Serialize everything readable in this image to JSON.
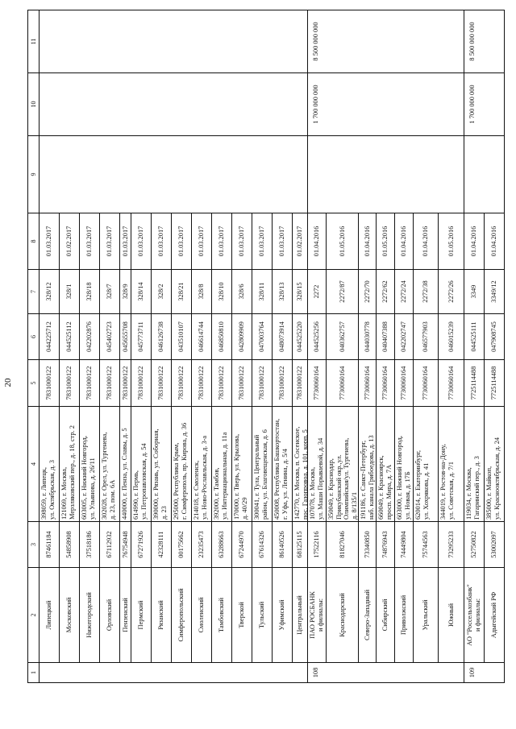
{
  "page_number": "20",
  "table": {
    "headers": [
      "1",
      "2",
      "3",
      "4",
      "5",
      "6",
      "7",
      "8",
      "9",
      "10",
      "11"
    ],
    "groups": [
      {
        "number": "",
        "col9": "",
        "col10": "",
        "col11": "",
        "rows": [
          {
            "name": "Липецкий",
            "okpo": "87461184",
            "address": "398059, г. Липецк,\nул. Октябрьская, д. 3",
            "inn": "7831000122",
            "bik": "044225712",
            "license": "328/12",
            "date": "01.03.2017"
          },
          {
            "name": "Московский",
            "okpo": "54858908",
            "address": "121069, г. Москва,\nМерзляковский пер., д. 18, стр. 2",
            "inn": "7831000122",
            "bik": "044525112",
            "license": "328/1",
            "date": "01.02.2017"
          },
          {
            "name": "Нижегородский",
            "okpo": "37518186",
            "address": "603005, г. Нижний Новгород,\nул. Ульянова, д. 26/11",
            "inn": "7831000122",
            "bik": "042202876",
            "license": "328/18",
            "date": "01.03.2017"
          },
          {
            "name": "Орловский",
            "okpo": "67112932",
            "address": "302028, г. Орел, ул. Тургенева,\nд. 23, пом. 6А",
            "inn": "7831000122",
            "bik": "045402723",
            "license": "328/7",
            "date": "01.03.2017"
          },
          {
            "name": "Пензенский",
            "okpo": "76754948",
            "address": "440000, г. Пенза, ул. Славы, д. 5",
            "inn": "7831000122",
            "bik": "045655708",
            "license": "328/9",
            "date": "01.03.2017"
          },
          {
            "name": "Пермский",
            "okpo": "67271926",
            "address": "614990, г. Пермь,\nул. Петропавловская, д. 54",
            "inn": "7831000122",
            "bik": "045773711",
            "license": "328/14",
            "date": "01.03.2017"
          },
          {
            "name": "Рязанский",
            "okpo": "42328111",
            "address": "390000, г. Рязань, ул. Соборная,\nд. 23",
            "inn": "7831000122",
            "bik": "046126738",
            "license": "328/2",
            "date": "01.03.2017"
          },
          {
            "name": "Симферопольский",
            "okpo": "00175662",
            "address": "295000, Республика Крым,\nг. Симферополь, пр. Кирова, д. 36",
            "inn": "7831000122",
            "bik": "043510107",
            "license": "328/21",
            "date": "01.03.2017"
          },
          {
            "name": "Смоленский",
            "okpo": "23235473",
            "address": "214018, г. Смоленск,\nул. Ново-Рославльская, д. 3-а",
            "inn": "7831000122",
            "bik": "046614744",
            "license": "328/8",
            "date": "01.03.2017"
          },
          {
            "name": "Тамбовский",
            "okpo": "63288663",
            "address": "392000, г. Тамбов,\nул. Интернациональная, д. 11а",
            "inn": "7831000122",
            "bik": "046850810",
            "license": "328/10",
            "date": "01.03.2017"
          },
          {
            "name": "Тверской",
            "okpo": "67244970",
            "address": "170000, г. Тверь, ул. Крылова,\nд. 40/29",
            "inn": "7831000122",
            "bik": "042809909",
            "license": "328/6",
            "date": "01.03.2017"
          },
          {
            "name": "Тульский",
            "okpo": "67614326",
            "address": "300041, г. Тула, Центральный\nрайон, ул. Благовещенская, д. 6",
            "inn": "7831000122",
            "bik": "047003764",
            "license": "328/11",
            "date": "01.03.2017"
          },
          {
            "name": "Уфимский",
            "okpo": "86140526",
            "address": "450008, Республика Башкортостан,\nг. Уфа, ул. Ленина, д. 5/4",
            "inn": "7831000122",
            "bik": "048073914",
            "license": "328/13",
            "date": "01.03.2017"
          },
          {
            "name": "Центральный",
            "okpo": "68125115",
            "address": "142770, г. Москва, п. Сосенское,\nпос. Газопровод, д. 101, корп. 5",
            "inn": "7831000122",
            "bik": "044525220",
            "license": "328/15",
            "date": "01.02.2017"
          }
        ]
      },
      {
        "number": "108",
        "col9": "",
        "col10": "1 700 000 000",
        "col11": "8 500 000 000",
        "rows": [
          {
            "name": "ПАО РОСБАНК\nи филиалы:",
            "okpo": "17522116",
            "address": "107078, г. Москва,\nул. Маши Порываевой, д. 34",
            "inn": "7730060164",
            "bik": "044525256",
            "license": "2272",
            "date": "01.04.2016"
          },
          {
            "name": "Краснодарский",
            "okpo": "81827046",
            "address": "350049, г. Краснодар,\nПрикубанский окр.,ул.\nОлимпийская/ул. Тургенева,\nд. 8/135/1",
            "inn": "7730060164",
            "bik": "040362757",
            "license": "2272/87",
            "date": "01.05.2016"
          },
          {
            "name": "Северо-Западный",
            "okpo": "73340850",
            "address": "191186, г. Санкт-Петербург,\nнаб. канала Грибоедова, д. 13",
            "inn": "7730060164",
            "bik": "044030778",
            "license": "2272/70",
            "date": "01.04.2016"
          },
          {
            "name": "Сибирский",
            "okpo": "74876943",
            "address": "660049, г. Красноярск,\nпросп. Мира, д. 7А",
            "inn": "7730060164",
            "bik": "040407388",
            "license": "2272/62",
            "date": "01.05.2016"
          },
          {
            "name": "Приволжский",
            "okpo": "74449804",
            "address": "603000, г. Нижний Новгород,\nул. Новая, д. 17Б",
            "inn": "7730060164",
            "bik": "042202747",
            "license": "2272/24",
            "date": "01.04.2016"
          },
          {
            "name": "Уральский",
            "okpo": "75744563",
            "address": "620014, г. Екатеринбург,\nул. Хохрякова, д. 41",
            "inn": "7730060164",
            "bik": "046577903",
            "license": "2272/38",
            "date": "01.04.2016"
          },
          {
            "name": "Южный",
            "okpo": "73295233",
            "address": "344019, г. Ростов-на-Дону,\nул. Советская, д. 7/1",
            "inn": "7730060164",
            "bik": "046015239",
            "license": "2272/26",
            "date": "01.05.2016"
          }
        ]
      },
      {
        "number": "109",
        "col9": "",
        "col10": "1 700 000 000",
        "col11": "8 500 000 000",
        "rows": [
          {
            "name": "АО \"Россельхозбанк\"\nи филиалы:",
            "okpo": "52750822",
            "address": "119034, г. Москва,\nГагаринский пер., д. 3",
            "inn": "7725114488",
            "bik": "044525111",
            "license": "3349",
            "date": "01.04.2016"
          },
          {
            "name": "Адыгейский РФ",
            "okpo": "53002097",
            "address": "385000, г. Майкоп,\nул. Краснооктябрьская, д. 24",
            "inn": "7725114488",
            "bik": "047908745",
            "license": "3349/12",
            "date": "01.04.2016"
          }
        ]
      }
    ]
  }
}
